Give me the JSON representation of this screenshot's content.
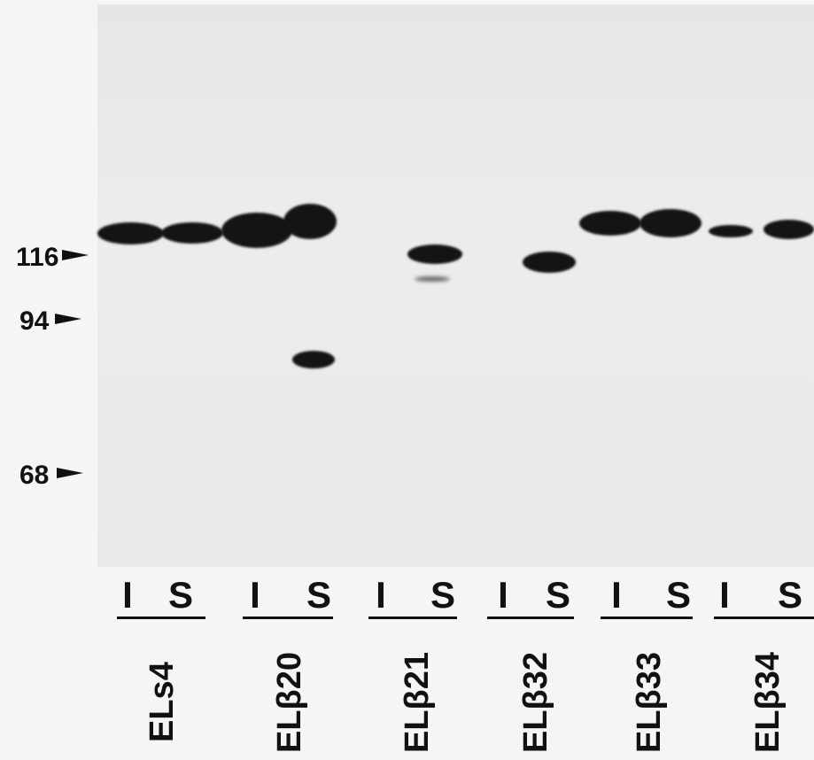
{
  "markers": [
    {
      "label": "116"
    },
    {
      "label": "94"
    },
    {
      "label": "68"
    }
  ],
  "lanes": [
    "I",
    "S",
    "I",
    "S",
    "I",
    "S",
    "I",
    "S",
    "I",
    "S",
    "I",
    "S"
  ],
  "samples": [
    "ELs4",
    "ELβ20",
    "ELβ21",
    "ELβ32",
    "ELβ33",
    "ELβ34"
  ]
}
